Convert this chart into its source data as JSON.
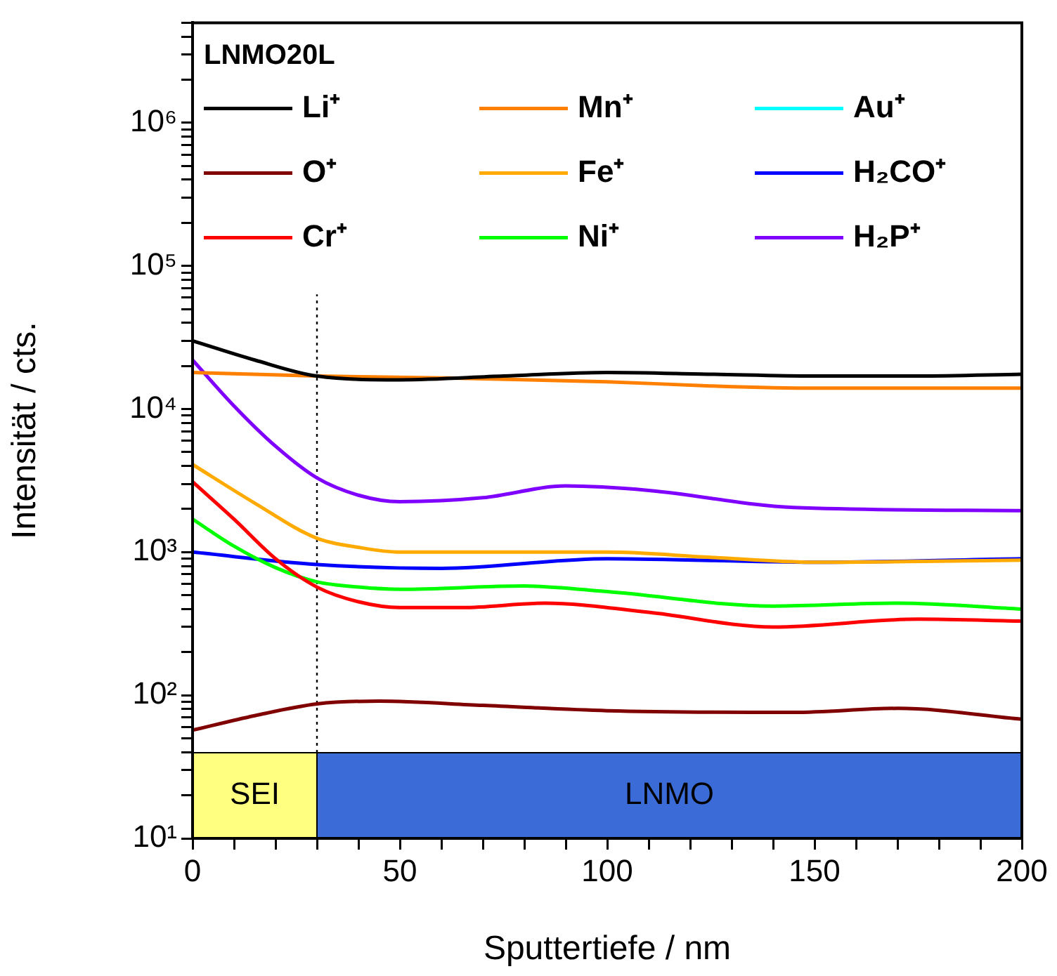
{
  "chart_data": {
    "type": "line",
    "xlabel": "Sputtertiefe / nm",
    "ylabel": "Intensität / cts.",
    "legend_title": "LNMO20L",
    "legend": "top",
    "log": "y",
    "xlim": [
      0,
      200
    ],
    "xticks": [
      0,
      {
        "value": 10,
        "label": null
      },
      {
        "value": 20,
        "label": null
      },
      {
        "value": 30,
        "label": null
      },
      {
        "value": 40,
        "label": null
      },
      50,
      {
        "value": 60,
        "label": null
      },
      {
        "value": 70,
        "label": null
      },
      {
        "value": 80,
        "label": null
      },
      {
        "value": 90,
        "label": null
      },
      100,
      {
        "value": 110,
        "label": null
      },
      {
        "value": 120,
        "label": null
      },
      {
        "value": 130,
        "label": null
      },
      {
        "value": 140,
        "label": null
      },
      150,
      {
        "value": 160,
        "label": null
      },
      {
        "value": 170,
        "label": null
      },
      {
        "value": 180,
        "label": null
      },
      {
        "value": 190,
        "label": null
      },
      200
    ],
    "ylim": [
      10,
      5000000
    ],
    "yticks": [
      {
        "value": 10,
        "label": "10¹"
      },
      {
        "value": 20,
        "label": null
      },
      {
        "value": 30,
        "label": null
      },
      {
        "value": 40,
        "label": null
      },
      {
        "value": 50,
        "label": null
      },
      {
        "value": 60,
        "label": null
      },
      {
        "value": 70,
        "label": null
      },
      {
        "value": 80,
        "label": null
      },
      {
        "value": 90,
        "label": null
      },
      {
        "value": 100,
        "label": "10²"
      },
      {
        "value": 200,
        "label": null
      },
      {
        "value": 300,
        "label": null
      },
      {
        "value": 400,
        "label": null
      },
      {
        "value": 500,
        "label": null
      },
      {
        "value": 600,
        "label": null
      },
      {
        "value": 700,
        "label": null
      },
      {
        "value": 800,
        "label": null
      },
      {
        "value": 900,
        "label": null
      },
      {
        "value": 1000,
        "label": "10³"
      },
      {
        "value": 2000,
        "label": null
      },
      {
        "value": 3000,
        "label": null
      },
      {
        "value": 4000,
        "label": null
      },
      {
        "value": 5000,
        "label": null
      },
      {
        "value": 6000,
        "label": null
      },
      {
        "value": 7000,
        "label": null
      },
      {
        "value": 8000,
        "label": null
      },
      {
        "value": 9000,
        "label": null
      },
      {
        "value": 10000,
        "label": "10⁴"
      },
      {
        "value": 20000,
        "label": null
      },
      {
        "value": 30000,
        "label": null
      },
      {
        "value": 40000,
        "label": null
      },
      {
        "value": 50000,
        "label": null
      },
      {
        "value": 60000,
        "label": null
      },
      {
        "value": 70000,
        "label": null
      },
      {
        "value": 80000,
        "label": null
      },
      {
        "value": 90000,
        "label": null
      },
      {
        "value": 100000,
        "label": "10⁵"
      },
      {
        "value": 200000,
        "label": null
      },
      {
        "value": 300000,
        "label": null
      },
      {
        "value": 400000,
        "label": null
      },
      {
        "value": 500000,
        "label": null
      },
      {
        "value": 600000,
        "label": null
      },
      {
        "value": 700000,
        "label": null
      },
      {
        "value": 800000,
        "label": null
      },
      {
        "value": 900000,
        "label": null
      },
      {
        "value": 1000000,
        "label": "10⁶"
      },
      {
        "value": 2000000,
        "label": null
      },
      {
        "value": 3000000,
        "label": null
      },
      {
        "value": 4000000,
        "label": null
      },
      {
        "value": 5000000,
        "label": null
      }
    ],
    "series": [
      {
        "name": "Li⁺",
        "color": "#000000",
        "x": [
          0,
          15,
          30,
          50,
          75,
          100,
          125,
          150,
          175,
          200
        ],
        "values": [
          30000,
          22000,
          17000,
          16000,
          17000,
          18000,
          17500,
          17000,
          17000,
          17500
        ]
      },
      {
        "name": "O⁺",
        "color": "#800000",
        "x": [
          0,
          15,
          30,
          45,
          70,
          100,
          145,
          170,
          200
        ],
        "values": [
          57,
          72,
          87,
          91,
          85,
          78,
          76,
          81,
          68
        ]
      },
      {
        "name": "Cr⁺",
        "color": "#ff0000",
        "x": [
          0,
          10,
          20,
          30,
          40,
          50,
          65,
          85,
          110,
          140,
          175,
          200
        ],
        "values": [
          3100,
          1700,
          900,
          570,
          450,
          410,
          410,
          440,
          380,
          300,
          340,
          330
        ]
      },
      {
        "name": "Mn⁺",
        "color": "#ff8000",
        "x": [
          0,
          30,
          60,
          100,
          125,
          150,
          200
        ],
        "values": [
          18000,
          17000,
          16500,
          15500,
          14500,
          14000,
          14000
        ]
      },
      {
        "name": "Fe⁺",
        "color": "#ffaa00",
        "x": [
          0,
          15,
          30,
          40,
          50,
          75,
          100,
          125,
          150,
          200
        ],
        "values": [
          4100,
          2200,
          1250,
          1080,
          1000,
          1000,
          1000,
          920,
          850,
          880
        ]
      },
      {
        "name": "Ni⁺",
        "color": "#00ff00",
        "x": [
          0,
          10,
          20,
          30,
          40,
          50,
          80,
          100,
          140,
          170,
          200
        ],
        "values": [
          1700,
          1100,
          780,
          620,
          570,
          550,
          580,
          530,
          420,
          440,
          400
        ]
      },
      {
        "name": "Au⁺",
        "color": "#00ffff"
      },
      {
        "name": "H₂CO⁺",
        "color": "#0000ff",
        "x": [
          0,
          30,
          60,
          100,
          150,
          200
        ],
        "values": [
          1000,
          820,
          770,
          900,
          850,
          900
        ]
      },
      {
        "name": "H₂P⁺",
        "color": "#8000ff",
        "x": [
          0,
          10,
          20,
          30,
          40,
          50,
          70,
          90,
          110,
          145,
          200
        ],
        "values": [
          22000,
          10500,
          5500,
          3300,
          2500,
          2250,
          2400,
          2900,
          2700,
          2050,
          1950
        ]
      }
    ],
    "bands": [
      {
        "axis": "x",
        "from": 0,
        "to": 30,
        "label": "SEI",
        "color": "#ffff80"
      },
      {
        "axis": "x",
        "from": 30,
        "to": 200,
        "label": "LNMO",
        "color": "#3a6bd6"
      }
    ],
    "ref_lines": [
      {
        "axis": "x",
        "value": 30,
        "line_style": "dotted",
        "color": "#000000"
      }
    ]
  }
}
